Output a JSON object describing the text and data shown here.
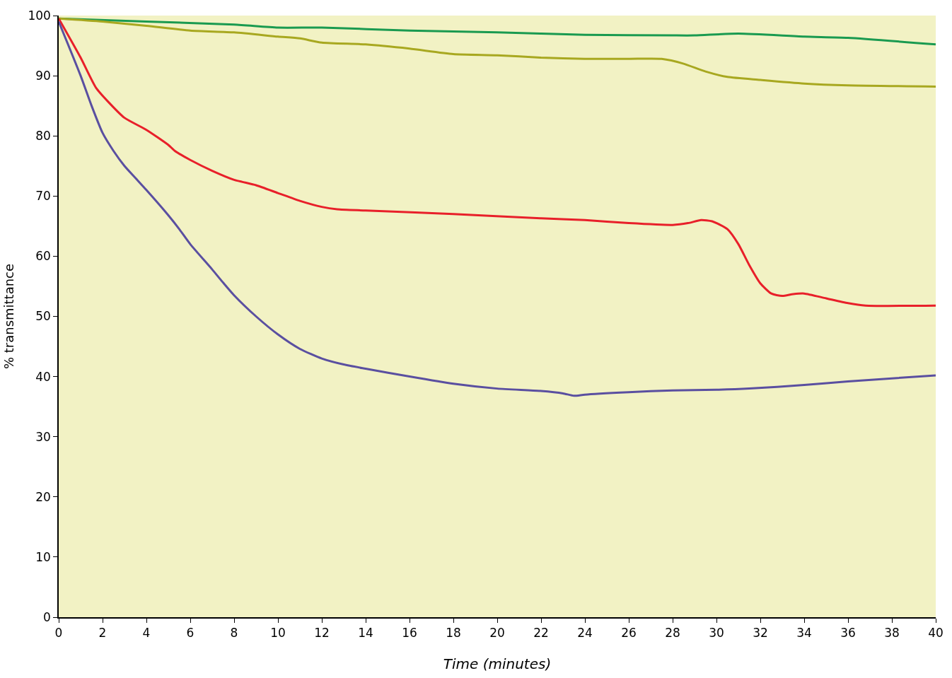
{
  "chart_data": {
    "type": "line",
    "xlabel": "Time (minutes)",
    "ylabel": "% transmittance",
    "xlim": [
      0,
      40
    ],
    "xticks": [
      0,
      2,
      4,
      6,
      8,
      10,
      12,
      14,
      16,
      18,
      20,
      22,
      24,
      26,
      28,
      30,
      32,
      34,
      36,
      38,
      40
    ],
    "ylim": [
      0,
      100
    ],
    "yticks": [
      0,
      10,
      20,
      30,
      40,
      50,
      60,
      70,
      80,
      90,
      100
    ],
    "grid": false,
    "marker": "none",
    "line_style": "solid",
    "series": [
      {
        "color": "#1a9a50",
        "x": [
          0,
          4,
          8,
          10,
          12,
          16,
          20,
          24,
          28,
          29,
          31,
          34,
          36,
          40
        ],
        "values": [
          99.5,
          99,
          98.5,
          98,
          98,
          97.5,
          97.2,
          96.8,
          96.7,
          96.7,
          97,
          96.5,
          96.3,
          95.2
        ]
      },
      {
        "color": "#a8a820",
        "x": [
          0,
          2,
          4,
          6,
          8,
          10,
          11,
          12,
          14,
          16,
          18,
          20,
          22,
          24,
          26,
          27.5,
          28.5,
          29.5,
          30.5,
          32,
          34,
          36,
          40
        ],
        "values": [
          99.5,
          99,
          98.3,
          97.5,
          97.2,
          96.5,
          96.2,
          95.5,
          95.2,
          94.5,
          93.6,
          93.4,
          93,
          92.8,
          92.8,
          92.8,
          92,
          90.7,
          89.8,
          89.3,
          88.7,
          88.4,
          88.2
        ]
      },
      {
        "color": "#e8202a",
        "x": [
          0,
          1,
          1.7,
          2.3,
          3,
          4,
          5,
          5.3,
          6,
          7,
          8,
          9,
          10,
          11,
          12,
          12.7,
          14,
          18,
          22,
          24,
          26,
          28,
          28.7,
          29.3,
          29.8,
          30.5,
          31,
          31.5,
          32,
          32.5,
          33,
          33.5,
          34,
          35,
          36,
          36.8,
          40
        ],
        "values": [
          99.5,
          93,
          88,
          85.5,
          83,
          81,
          78.5,
          77.5,
          76,
          74.2,
          72.7,
          71.8,
          70.5,
          69.2,
          68.2,
          67.8,
          67.6,
          67,
          66.3,
          66,
          65.5,
          65.2,
          65.5,
          66,
          65.8,
          64.5,
          62,
          58.5,
          55.5,
          53.8,
          53.4,
          53.7,
          53.8,
          53,
          52.2,
          51.8,
          51.8
        ]
      },
      {
        "color": "#5a4fa0",
        "x": [
          0,
          1,
          1.5,
          2,
          2.5,
          3,
          3.5,
          4,
          5,
          5.5,
          6,
          7,
          7.5,
          8,
          9,
          10,
          11,
          12,
          13,
          14,
          16,
          18,
          20,
          22,
          23,
          23.5,
          24,
          26,
          28,
          30,
          31.5,
          34,
          36,
          40
        ],
        "values": [
          99,
          90,
          85,
          80.5,
          77.5,
          75,
          73,
          71,
          66.8,
          64.5,
          62,
          57.8,
          55.6,
          53.5,
          50,
          47,
          44.6,
          43,
          42,
          41.3,
          40,
          38.8,
          38,
          37.6,
          37.2,
          36.8,
          37,
          37.4,
          37.7,
          37.8,
          38,
          38.6,
          39.2,
          40.2
        ]
      }
    ]
  }
}
